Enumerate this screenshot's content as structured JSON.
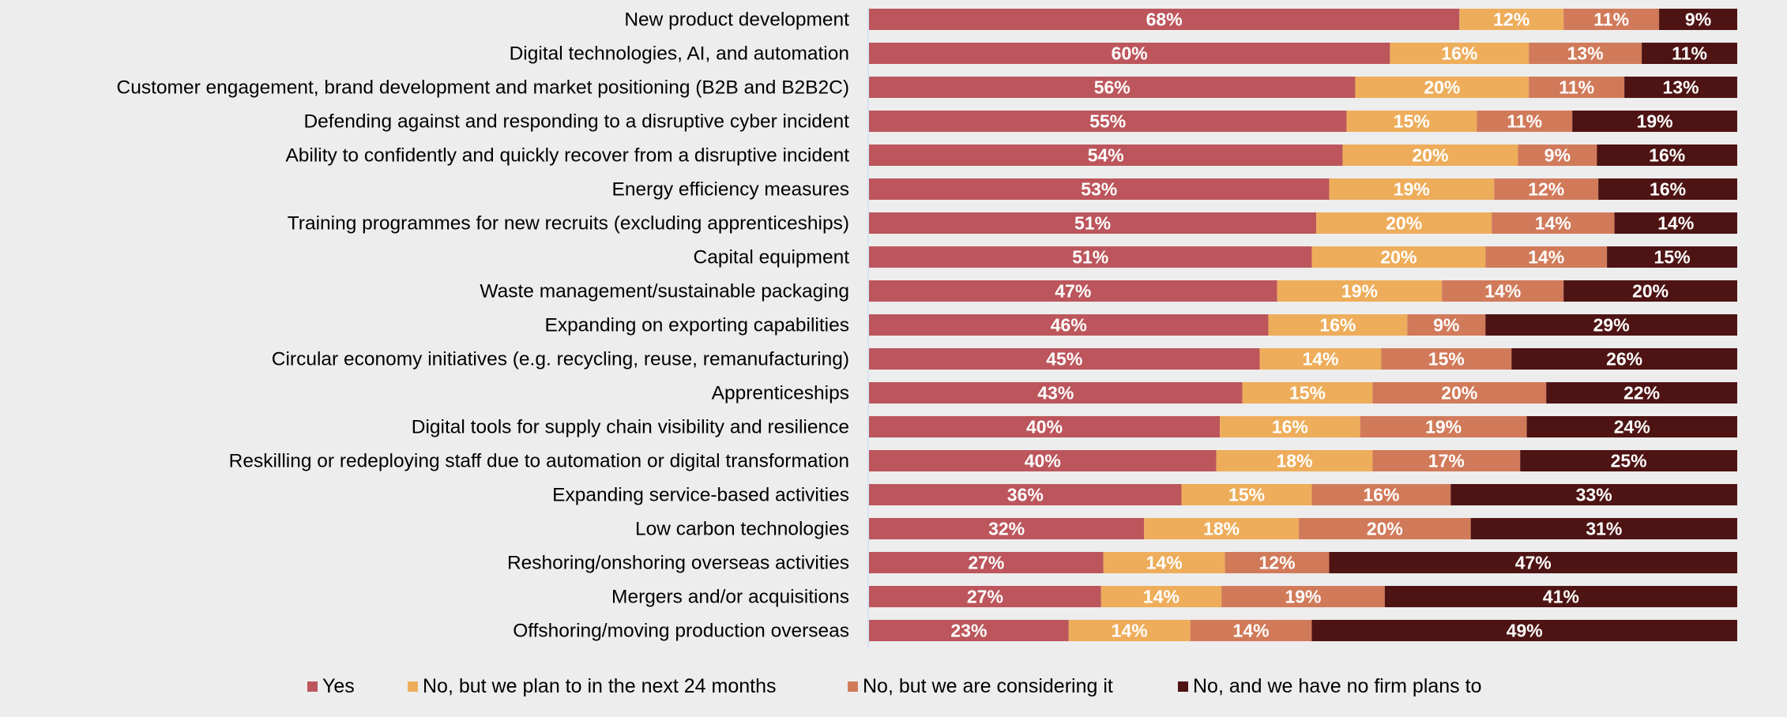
{
  "chart_data": {
    "type": "bar",
    "orientation": "horizontal",
    "stacked": true,
    "title": "",
    "xlabel": "",
    "ylabel": "",
    "xlim": [
      0,
      100
    ],
    "unit": "%",
    "grid": false,
    "legend_position": "bottom",
    "categories": [
      "New product development",
      "Digital technologies, AI, and automation",
      "Customer engagement, brand development and market positioning (B2B and B2B2C)",
      "Defending against and responding to a disruptive cyber incident",
      "Ability to confidently and quickly recover from a disruptive incident",
      "Energy efficiency measures",
      "Training programmes for new recruits (excluding apprenticeships)",
      "Capital equipment",
      "Waste management/sustainable packaging",
      "Expanding on exporting capabilities",
      "Circular economy initiatives (e.g. recycling, reuse, remanufacturing)",
      "Apprenticeships",
      "Digital tools for supply chain visibility and resilience",
      "Reskilling or redeploying staff due to automation or digital transformation",
      "Expanding service-based activities",
      "Low carbon technologies",
      "Reshoring/onshoring overseas activities",
      "Mergers and/or acquisitions",
      "Offshoring/moving production overseas"
    ],
    "series": [
      {
        "name": "Yes",
        "color": "#BC565C",
        "values": [
          68,
          60,
          56,
          55,
          54,
          53,
          51,
          51,
          47,
          46,
          45,
          43,
          40,
          40,
          36,
          32,
          27,
          27,
          23
        ]
      },
      {
        "name": "No, but we plan to in the next 24 months",
        "color": "#EEAD5B",
        "values": [
          12,
          16,
          20,
          15,
          20,
          19,
          20,
          20,
          19,
          16,
          14,
          15,
          16,
          18,
          15,
          18,
          14,
          14,
          14
        ]
      },
      {
        "name": "No, but we are considering it",
        "color": "#D17A5A",
        "values": [
          11,
          13,
          11,
          11,
          9,
          12,
          14,
          14,
          14,
          9,
          15,
          20,
          19,
          17,
          16,
          20,
          12,
          19,
          14
        ]
      },
      {
        "name": "No, and we have no firm plans to",
        "color": "#4E1313",
        "values": [
          9,
          11,
          13,
          19,
          16,
          16,
          14,
          15,
          20,
          29,
          26,
          22,
          24,
          25,
          33,
          31,
          47,
          41,
          49
        ]
      }
    ]
  },
  "colors": {
    "background": "#EDEDED",
    "axis_line": "#D6E3F3",
    "label_text": "#000000",
    "segment_text": "#FFFFFF"
  }
}
